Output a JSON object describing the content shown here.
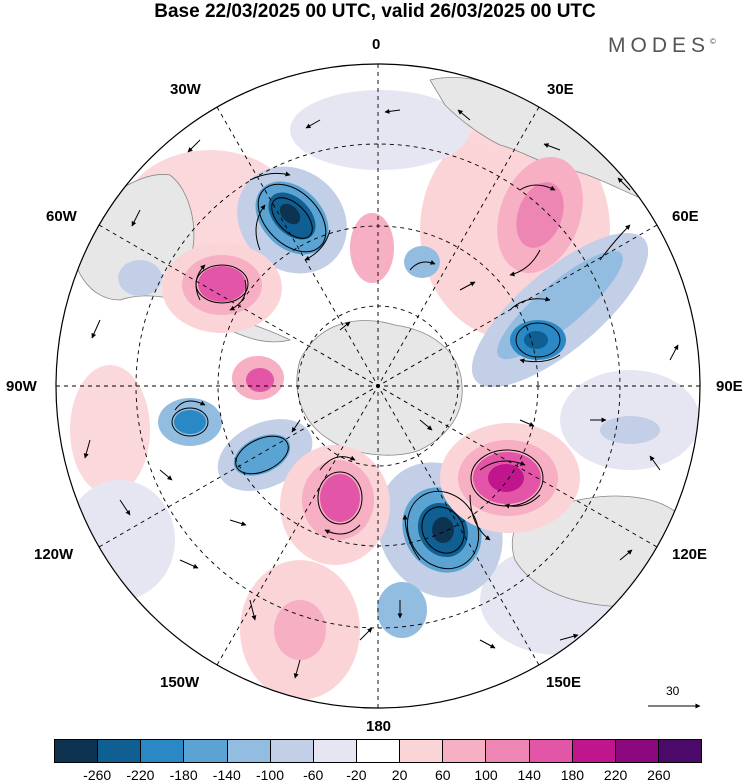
{
  "title": "Base 22/03/2025 00 UTC, valid 26/03/2025 00 UTC",
  "brand": "MODES",
  "brand_mark": "©",
  "longitude_labels": {
    "lon_0": "0",
    "lon_30e": "30E",
    "lon_60e": "60E",
    "lon_90e": "90E",
    "lon_120e": "120E",
    "lon_150e": "150E",
    "lon_180": "180",
    "lon_150w": "150W",
    "lon_120w": "120W",
    "lon_90w": "90W",
    "lon_60w": "60W",
    "lon_30w": "30W"
  },
  "reference_vector": "30",
  "colorbar": {
    "colors": [
      "#0d3350",
      "#0f5f92",
      "#2a88c4",
      "#5aa3d2",
      "#93bde0",
      "#c2cfe6",
      "#e5e6f1",
      "#ffffff",
      "#fbd4d8",
      "#f6afc3",
      "#ee86b4",
      "#e355a7",
      "#c0168d",
      "#8c087f",
      "#4b0a6a"
    ],
    "ticks": [
      "-260",
      "-220",
      "-180",
      "-140",
      "-100",
      "-60",
      "-20",
      "20",
      "60",
      "100",
      "140",
      "180",
      "220",
      "260"
    ]
  },
  "anomalies": [
    {
      "name": "neg-anomaly-south-atlantic",
      "color": "#0f5f92",
      "value": "-220"
    },
    {
      "name": "neg-anomaly-indian",
      "color": "#2a88c4",
      "value": "-180"
    },
    {
      "name": "neg-anomaly-southwest-pacific",
      "color": "#0f5f92",
      "value": "-220"
    },
    {
      "name": "pos-anomaly-south-of-australia",
      "color": "#c0168d",
      "value": "220"
    },
    {
      "name": "pos-anomaly-pacific",
      "color": "#e355a7",
      "value": "180"
    },
    {
      "name": "pos-anomaly-argentina",
      "color": "#e355a7",
      "value": "180"
    }
  ]
}
